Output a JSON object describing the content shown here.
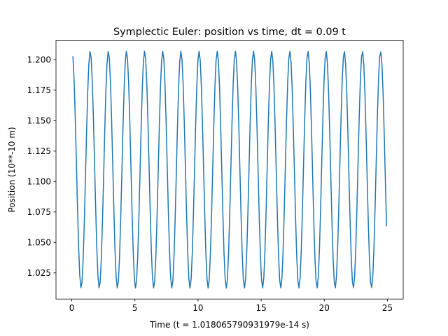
{
  "chart_data": {
    "type": "line",
    "title": "Symplectic Euler: position vs time, dt = 0.09 t",
    "xlabel": "Time (t = 1.018065790931979e-14 s)",
    "ylabel": "Position (10**-10 m)",
    "xlim": [
      -1.25,
      26.25
    ],
    "ylim": [
      1.0035,
      1.216
    ],
    "x_ticks": [
      0,
      5,
      10,
      15,
      20,
      25
    ],
    "x_tick_labels": [
      "0",
      "5",
      "10",
      "15",
      "20",
      "25"
    ],
    "y_ticks": [
      1.025,
      1.05,
      1.075,
      1.1,
      1.125,
      1.15,
      1.175,
      1.2
    ],
    "y_tick_labels": [
      "1.025",
      "1.050",
      "1.075",
      "1.100",
      "1.125",
      "1.150",
      "1.175",
      "1.200"
    ],
    "grid": false,
    "color": "#1f77b4",
    "series": [
      {
        "dt": 0.09,
        "x_start": 0.09,
        "x_end": 24.93,
        "y_max": 1.207,
        "y_min": 1.0125,
        "period": 1.4375
      }
    ]
  }
}
